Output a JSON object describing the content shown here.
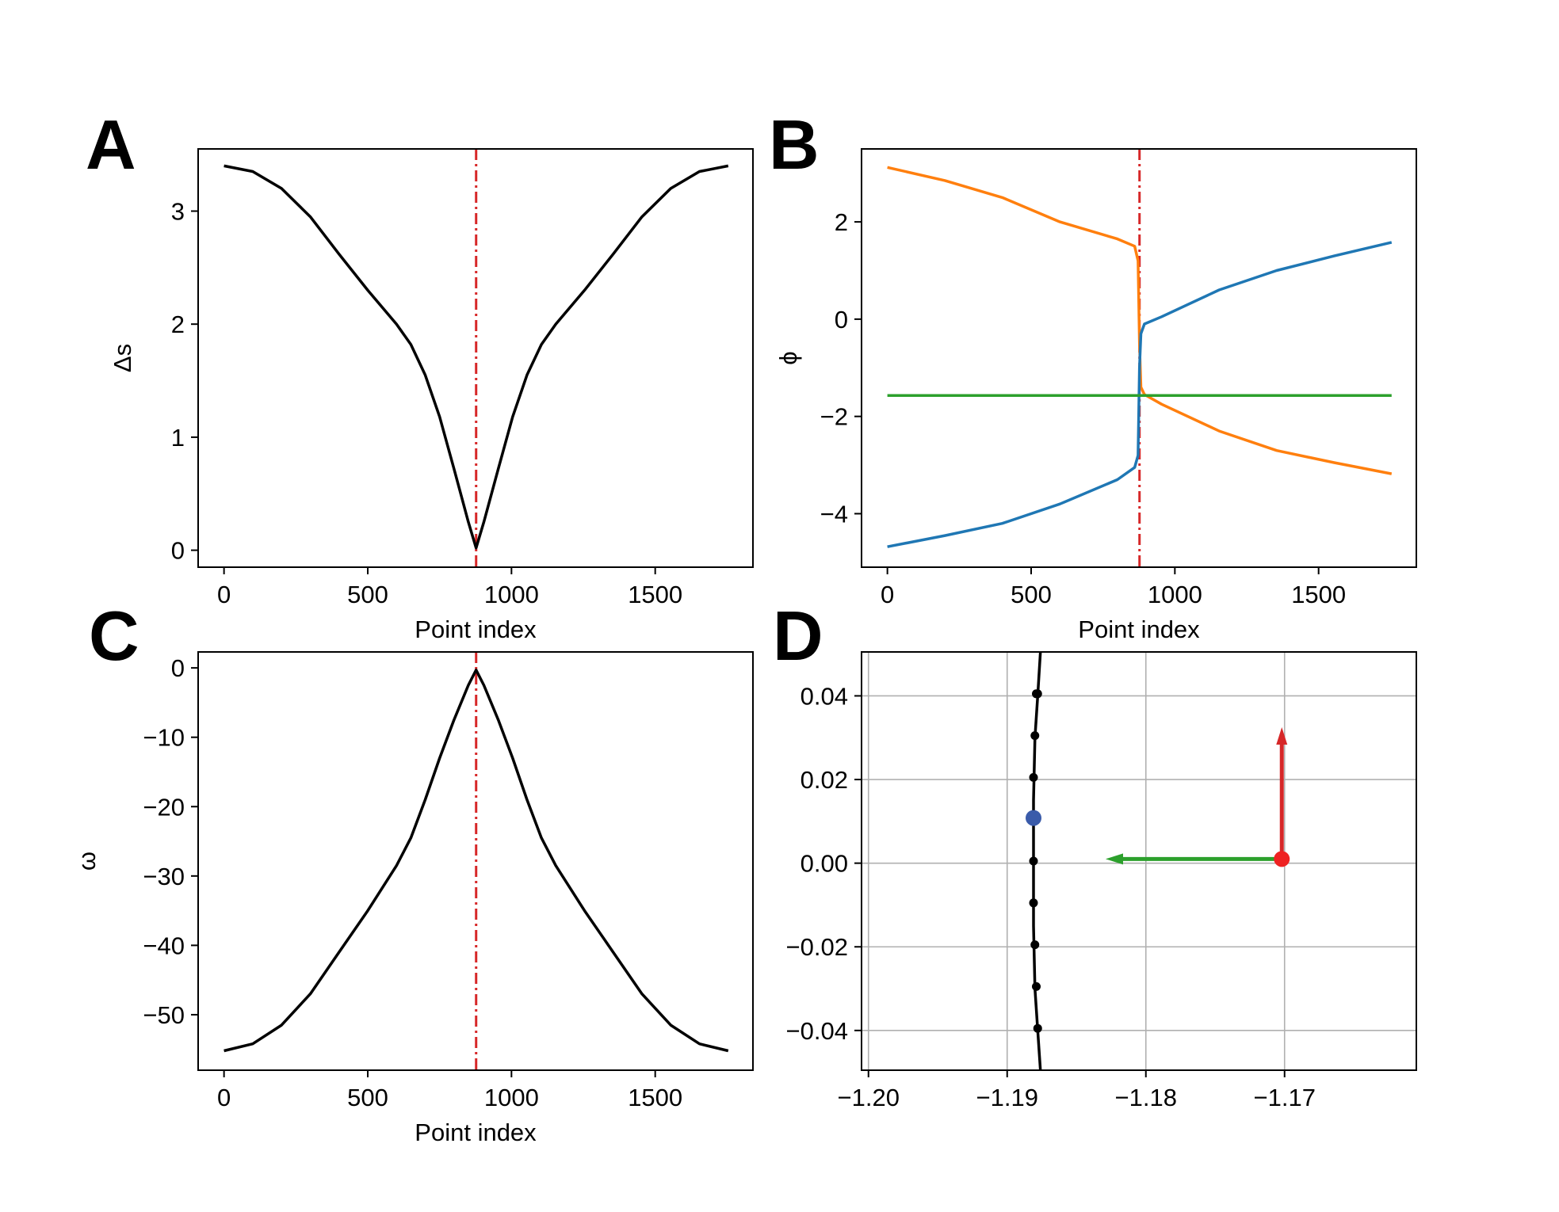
{
  "chart_data": [
    {
      "panel": "A",
      "type": "line",
      "xlabel": "Point index",
      "ylabel": "Δs",
      "xlim": [
        -90,
        1840
      ],
      "ylim": [
        -0.15,
        3.55
      ],
      "xticks": [
        0,
        500,
        1000,
        1500
      ],
      "yticks": [
        0,
        1,
        2,
        3
      ],
      "xtick_labels": [
        "0",
        "500",
        "1000",
        "1500"
      ],
      "ytick_labels": [
        "0",
        "1",
        "2",
        "3"
      ],
      "vline": {
        "x": 877,
        "color": "#d62728",
        "style": "dashdot"
      },
      "series": [
        {
          "name": "Δs",
          "color": "#000000",
          "x": [
            0,
            100,
            200,
            300,
            400,
            500,
            600,
            650,
            700,
            750,
            800,
            850,
            877,
            904,
            954,
            1004,
            1054,
            1104,
            1154,
            1254,
            1354,
            1454,
            1554,
            1654,
            1754
          ],
          "y": [
            3.4,
            3.35,
            3.2,
            2.95,
            2.62,
            2.3,
            2.0,
            1.82,
            1.55,
            1.18,
            0.72,
            0.25,
            0.02,
            0.25,
            0.72,
            1.18,
            1.55,
            1.82,
            2.0,
            2.3,
            2.62,
            2.95,
            3.2,
            3.35,
            3.4
          ]
        }
      ]
    },
    {
      "panel": "B",
      "type": "line",
      "xlabel": "Point index",
      "ylabel": "ϕ",
      "xlim": [
        -90,
        1840
      ],
      "ylim": [
        -5.1,
        3.5
      ],
      "xticks": [
        0,
        500,
        1000,
        1500
      ],
      "yticks": [
        -4,
        -2,
        0,
        2
      ],
      "xtick_labels": [
        "0",
        "500",
        "1000",
        "1500"
      ],
      "ytick_labels": [
        "−4",
        "−2",
        "0",
        "2"
      ],
      "vline": {
        "x": 877,
        "color": "#d62728",
        "style": "dashdot"
      },
      "series": [
        {
          "name": "orange",
          "color": "#ff7f0e",
          "x": [
            0,
            200,
            400,
            600,
            800,
            860,
            872,
            877,
            882,
            894,
            954,
            1154,
            1354,
            1554,
            1754
          ],
          "y": [
            3.12,
            2.85,
            2.5,
            2.0,
            1.65,
            1.5,
            1.2,
            -0.5,
            -1.4,
            -1.55,
            -1.75,
            -2.3,
            -2.7,
            -2.95,
            -3.18
          ]
        },
        {
          "name": "blue",
          "color": "#1f77b4",
          "x": [
            0,
            200,
            400,
            600,
            800,
            860,
            872,
            877,
            882,
            894,
            954,
            1154,
            1354,
            1554,
            1754
          ],
          "y": [
            -4.68,
            -4.45,
            -4.2,
            -3.8,
            -3.3,
            -3.05,
            -2.8,
            -1.0,
            -0.3,
            -0.1,
            0.05,
            0.6,
            1.0,
            1.3,
            1.58
          ]
        },
        {
          "name": "green",
          "color": "#2ca02c",
          "x": [
            0,
            1754
          ],
          "y": [
            -1.57,
            -1.57
          ]
        }
      ]
    },
    {
      "panel": "C",
      "type": "line",
      "xlabel": "Point index",
      "ylabel": "ω",
      "xlim": [
        -90,
        1840
      ],
      "ylim": [
        -58,
        2.3
      ],
      "xticks": [
        0,
        500,
        1000,
        1500
      ],
      "yticks": [
        0,
        -10,
        -20,
        -30,
        -40,
        -50
      ],
      "xtick_labels": [
        "0",
        "500",
        "1000",
        "1500"
      ],
      "ytick_labels": [
        "0",
        "−10",
        "−20",
        "−30",
        "−40",
        "−50"
      ],
      "vline": {
        "x": 877,
        "color": "#d62728",
        "style": "dashdot"
      },
      "series": [
        {
          "name": "ω",
          "color": "#000000",
          "x": [
            0,
            100,
            200,
            300,
            400,
            500,
            600,
            650,
            700,
            750,
            800,
            850,
            877,
            904,
            954,
            1004,
            1054,
            1104,
            1154,
            1254,
            1354,
            1454,
            1554,
            1654,
            1754
          ],
          "y": [
            -55.2,
            -54.2,
            -51.5,
            -47.0,
            -41.0,
            -35.0,
            -28.5,
            -24.5,
            -19.0,
            -13.0,
            -7.5,
            -2.5,
            -0.3,
            -2.5,
            -7.5,
            -13.0,
            -19.0,
            -24.5,
            -28.5,
            -35.0,
            -41.0,
            -47.0,
            -51.5,
            -54.2,
            -55.2
          ]
        }
      ]
    },
    {
      "panel": "D",
      "type": "scatter",
      "xlabel": "",
      "ylabel": "",
      "xlim": [
        -1.2005,
        -1.1605
      ],
      "ylim": [
        -0.0495,
        0.0505
      ],
      "xticks": [
        -1.2,
        -1.19,
        -1.18,
        -1.17
      ],
      "yticks": [
        -0.04,
        -0.02,
        0.0,
        0.02,
        0.04
      ],
      "xtick_labels": [
        "−1.20",
        "−1.19",
        "−1.18",
        "−1.17"
      ],
      "ytick_labels": [
        "−0.04",
        "−0.02",
        "0.00",
        "0.02",
        "0.04"
      ],
      "grid": true,
      "curve": {
        "color": "#000000",
        "x": [
          -1.1876,
          -1.1878,
          -1.188,
          -1.1881,
          -1.1881,
          -1.1881,
          -1.188,
          -1.1878,
          -1.1876
        ],
        "y": [
          -0.0495,
          -0.04,
          -0.03,
          -0.015,
          0.0,
          0.015,
          0.03,
          0.04,
          0.0505
        ]
      },
      "points": {
        "color": "#000000",
        "x": [
          -1.1878,
          -1.1879,
          -1.188,
          -1.1881,
          -1.1881,
          -1.1881,
          -1.1881,
          -1.188,
          -1.1879,
          -1.1878
        ],
        "y": [
          -0.0395,
          -0.0295,
          -0.0195,
          -0.0095,
          0.0005,
          0.0105,
          0.0205,
          0.0305,
          0.0405,
          0.0405
        ]
      },
      "blue_point": {
        "x": -1.1881,
        "y": 0.0108,
        "color": "#3a5baa"
      },
      "red_point": {
        "x": -1.1702,
        "y": 0.001,
        "color": "#ee2222"
      },
      "arrows": [
        {
          "name": "red-arrow",
          "color": "#d62728",
          "x0": -1.1702,
          "y0": 0.001,
          "x1": -1.1702,
          "y1": 0.0325
        },
        {
          "name": "green-arrow",
          "color": "#2ca02c",
          "x0": -1.1702,
          "y0": 0.001,
          "x1": -1.1829,
          "y1": 0.001
        }
      ]
    }
  ],
  "panel_letters": {
    "A": "A",
    "B": "B",
    "C": "C",
    "D": "D"
  }
}
